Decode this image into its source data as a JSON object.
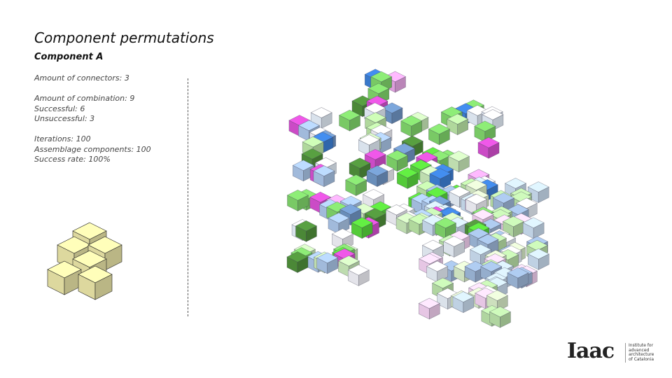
{
  "header": {
    "title": "Component permutations",
    "subtitle": "Component A"
  },
  "stats": {
    "groups": [
      [
        "Amount of connectors: 3"
      ],
      [
        "Amount of combination: 9",
        "Successful: 6",
        "Unsuccessful: 3"
      ],
      [
        "Iterations: 100",
        "Assemblage components: 100",
        "Success rate: 100%"
      ]
    ]
  },
  "logo": {
    "name": "Iaac",
    "tagline": [
      "Institute for",
      "advanced",
      "architecture",
      "of Catalonia"
    ]
  }
}
